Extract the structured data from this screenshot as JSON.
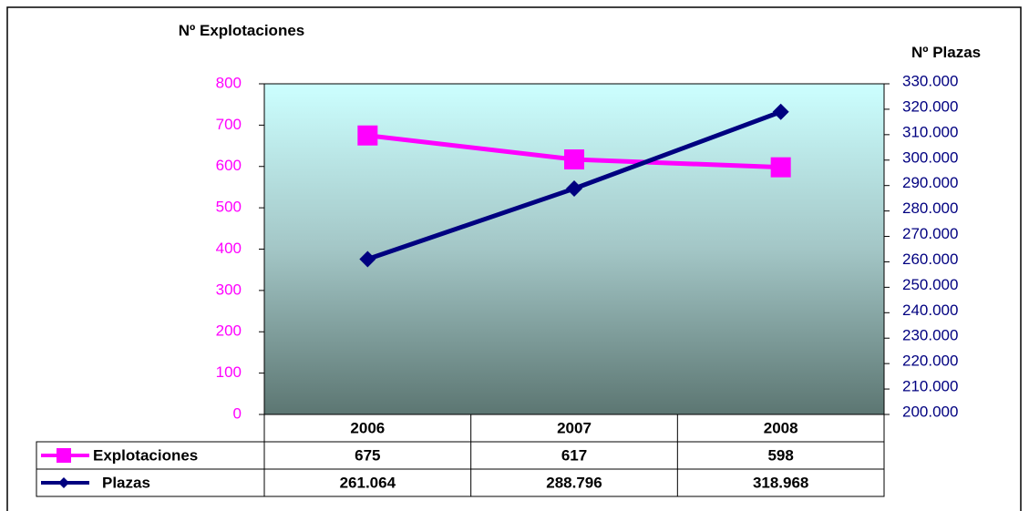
{
  "chart_data": {
    "type": "line",
    "y_label": "Nº Explotaciones",
    "y2_label": "Nº Plazas",
    "categories": [
      "2006",
      "2007",
      "2008"
    ],
    "series": [
      {
        "name": "Explotaciones",
        "color": "#ff00ff",
        "marker": "square",
        "values": [
          675,
          617,
          598
        ]
      },
      {
        "name": "Plazas",
        "color": "#000080",
        "marker": "diamond",
        "axis": "y2",
        "values": [
          261064,
          288796,
          318968
        ],
        "value_labels": [
          "261.064",
          "288.796",
          "318.968"
        ]
      }
    ],
    "ylim": [
      0,
      800
    ],
    "yticks": [
      0,
      100,
      200,
      300,
      400,
      500,
      600,
      700,
      800
    ],
    "y2lim": [
      200000,
      330000
    ],
    "y2ticks": [
      {
        "value": 200000,
        "label": "200.000"
      },
      {
        "value": 210000,
        "label": "210.000"
      },
      {
        "value": 220000,
        "label": "220.000"
      },
      {
        "value": 230000,
        "label": "230.000"
      },
      {
        "value": 240000,
        "label": "240.000"
      },
      {
        "value": 250000,
        "label": "250.000"
      },
      {
        "value": 260000,
        "label": "260.000"
      },
      {
        "value": 270000,
        "label": "270.000"
      },
      {
        "value": 280000,
        "label": "280.000"
      },
      {
        "value": 290000,
        "label": "290.000"
      },
      {
        "value": 300000,
        "label": "300.000"
      },
      {
        "value": 310000,
        "label": "310.000"
      },
      {
        "value": 320000,
        "label": "320.000"
      },
      {
        "value": 330000,
        "label": "330.000"
      }
    ],
    "grid": false,
    "data_table": true
  }
}
